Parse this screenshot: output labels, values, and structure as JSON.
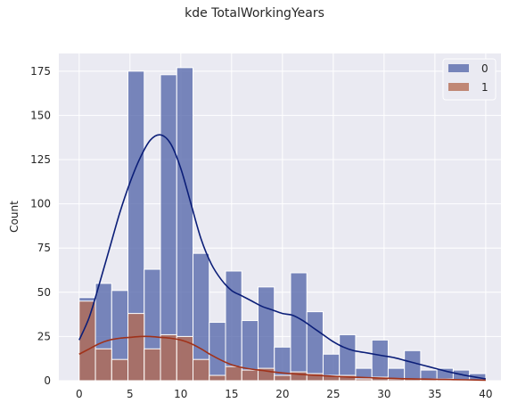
{
  "chart_data": {
    "type": "bar",
    "title": "kde TotalWorkingYears",
    "xlabel": "",
    "ylabel": "Count",
    "xlim": [
      -2,
      41.5
    ],
    "ylim": [
      0,
      185
    ],
    "xticks": [
      0,
      5,
      10,
      15,
      20,
      25,
      30,
      35,
      40
    ],
    "yticks": [
      0,
      25,
      50,
      75,
      100,
      125,
      150,
      175
    ],
    "grid": true,
    "legend_position": "top-right",
    "bin_edges": [
      0,
      1.6,
      3.2,
      4.8,
      6.4,
      8.0,
      9.6,
      11.2,
      12.8,
      14.4,
      16.0,
      17.6,
      19.2,
      20.8,
      22.4,
      24.0,
      25.6,
      27.2,
      28.8,
      30.4,
      32.0,
      33.6,
      35.2,
      36.8,
      38.4,
      40.0
    ],
    "series": [
      {
        "name": "0",
        "color": "#5566aa",
        "kde_color": "#0b1e78",
        "values": [
          47,
          55,
          51,
          175,
          63,
          173,
          177,
          72,
          33,
          62,
          34,
          53,
          19,
          61,
          39,
          15,
          26,
          7,
          23,
          7,
          17,
          6,
          7,
          6,
          4
        ],
        "kde": {
          "x": [
            0,
            1,
            2,
            3,
            4,
            5,
            6,
            7,
            8,
            9,
            10,
            11,
            12,
            13,
            14,
            15,
            16,
            17,
            18,
            19,
            20,
            21,
            22,
            23,
            24,
            25,
            26,
            27,
            28,
            29,
            30,
            31,
            32,
            33,
            34,
            35,
            36,
            37,
            38,
            39,
            40
          ],
          "y": [
            23,
            36,
            55,
            75,
            95,
            112,
            126,
            136,
            139,
            134,
            120,
            100,
            80,
            66,
            57,
            51,
            48,
            45,
            42,
            40,
            38,
            37,
            34,
            30,
            26,
            22,
            19,
            17,
            16,
            15,
            14,
            13,
            11.5,
            10,
            8.5,
            7,
            5.5,
            4.2,
            3,
            2,
            1
          ]
        }
      },
      {
        "name": "1",
        "color": "#b46a52",
        "kde_color": "#a0321a",
        "values": [
          45,
          18,
          12,
          38,
          18,
          26,
          25,
          12,
          3,
          8,
          6,
          7,
          3,
          5,
          4,
          3,
          3,
          1,
          2,
          1,
          1,
          1,
          1,
          0,
          0
        ],
        "kde": {
          "x": [
            0,
            1,
            2,
            3,
            4,
            5,
            6,
            7,
            8,
            9,
            10,
            11,
            12,
            13,
            14,
            15,
            16,
            17,
            18,
            19,
            20,
            21,
            22,
            23,
            24,
            25,
            26,
            27,
            28,
            29,
            30,
            31,
            32,
            33,
            34,
            35,
            36,
            37,
            38,
            39,
            40
          ],
          "y": [
            15,
            18,
            21,
            23,
            24,
            24.5,
            25,
            25,
            24.5,
            24,
            23,
            21,
            18,
            14.5,
            11.5,
            9,
            7.5,
            6.5,
            5.8,
            5,
            4.4,
            3.9,
            3.5,
            3.1,
            2.8,
            2.5,
            2.2,
            2,
            1.8,
            1.6,
            1.4,
            1.3,
            1.1,
            1,
            0.9,
            0.8,
            0.7,
            0.6,
            0.5,
            0.4,
            0.3
          ]
        }
      }
    ]
  }
}
